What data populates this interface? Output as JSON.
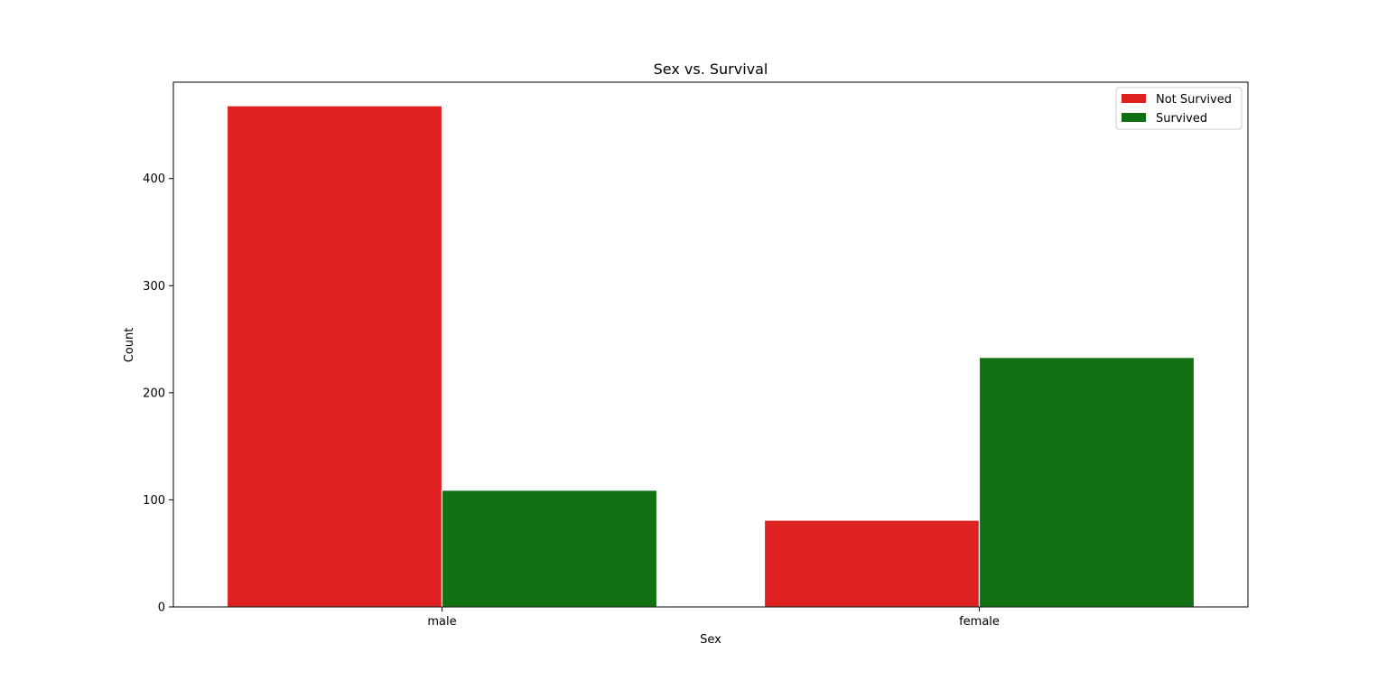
{
  "chart_data": {
    "type": "bar",
    "title": "Sex vs. Survival",
    "xlabel": "Sex",
    "ylabel": "Count",
    "categories": [
      "male",
      "female"
    ],
    "series": [
      {
        "name": "Not Survived",
        "values": [
          468,
          81
        ],
        "color": "#df2020"
      },
      {
        "name": "Survived",
        "values": [
          109,
          233
        ],
        "color": "#117011"
      }
    ],
    "ylim": [
      0,
      490
    ],
    "yticks": [
      0,
      100,
      200,
      300,
      400
    ],
    "grid": false,
    "legend": "top-right"
  }
}
